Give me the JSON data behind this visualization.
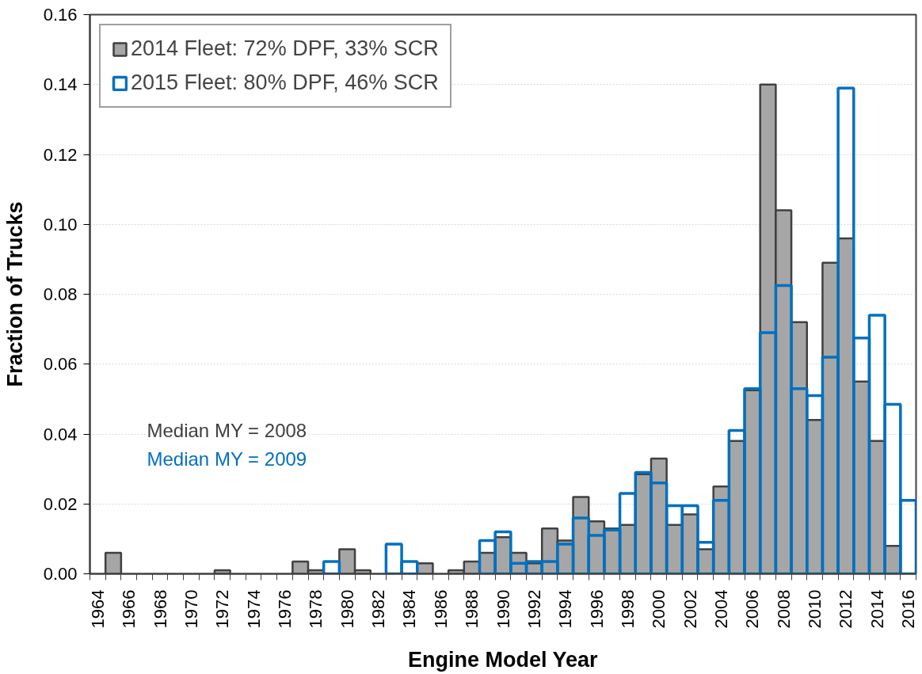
{
  "chart_data": {
    "type": "bar",
    "xlabel": "Engine Model Year",
    "ylabel": "Fraction of Trucks",
    "categories": [
      "1964",
      null,
      "1966",
      null,
      "1968",
      null,
      "1970",
      null,
      "1972",
      null,
      "1974",
      null,
      "1976",
      null,
      "1978",
      null,
      "1980",
      null,
      "1982",
      null,
      "1984",
      null,
      "1986",
      null,
      "1988",
      null,
      "1990",
      null,
      "1992",
      null,
      "1994",
      null,
      "1996",
      null,
      "1998",
      null,
      "2000",
      null,
      "2002",
      null,
      "2004",
      null,
      "2006",
      null,
      "2008",
      null,
      "2010",
      null,
      "2012",
      null,
      "2014",
      null,
      "2016"
    ],
    "series": [
      {
        "name": "2014 Fleet: 72% DPF, 33% SCR",
        "color": "#a6a6a6",
        "values": [
          null,
          0.006,
          null,
          null,
          null,
          null,
          null,
          null,
          0.001,
          null,
          null,
          null,
          null,
          0.0035,
          0.001,
          null,
          0.007,
          0.001,
          null,
          null,
          null,
          0.003,
          null,
          0.001,
          0.0035,
          0.006,
          0.0105,
          0.006,
          0.003,
          0.013,
          0.0095,
          0.022,
          0.015,
          0.013,
          0.014,
          0.0285,
          0.033,
          0.014,
          0.017,
          0.007,
          0.025,
          0.038,
          0.0525,
          0.14,
          0.104,
          0.072,
          0.044,
          0.089,
          0.096,
          0.055,
          0.038,
          0.008,
          null
        ]
      },
      {
        "name": "2015 Fleet: 80% DPF, 46% SCR",
        "color": "#0070c0",
        "values": [
          null,
          null,
          null,
          null,
          null,
          null,
          null,
          null,
          null,
          null,
          null,
          null,
          null,
          null,
          null,
          0.0035,
          null,
          null,
          null,
          0.0085,
          0.0035,
          null,
          null,
          null,
          null,
          0.0095,
          0.012,
          0.003,
          0.0035,
          0.0035,
          0.0085,
          0.016,
          0.011,
          0.0125,
          0.023,
          0.029,
          0.026,
          0.0195,
          0.0195,
          0.009,
          0.021,
          0.041,
          0.053,
          0.069,
          0.0825,
          0.053,
          0.051,
          0.062,
          0.139,
          0.0675,
          0.074,
          0.0485,
          0.021
        ]
      }
    ],
    "ylim": [
      0,
      0.16
    ],
    "yticks": [
      {
        "value": 0,
        "label": "0.00"
      },
      {
        "value": 0.02,
        "label": "0.02"
      },
      {
        "value": 0.04,
        "label": "0.04"
      },
      {
        "value": 0.06,
        "label": "0.06"
      },
      {
        "value": 0.08,
        "label": "0.08"
      },
      {
        "value": 0.1,
        "label": "0.10"
      },
      {
        "value": 0.12,
        "label": "0.12"
      },
      {
        "value": 0.14,
        "label": "0.14"
      },
      {
        "value": 0.16,
        "label": "0.16"
      }
    ],
    "grid": "y",
    "legend": "top left",
    "annotations": [
      "Median MY = 2008",
      "Median MY = 2009"
    ]
  }
}
